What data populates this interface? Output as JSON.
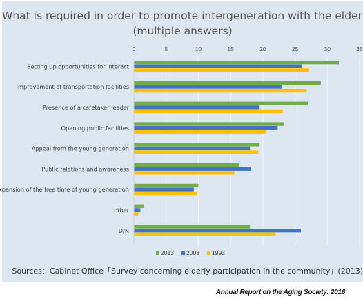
{
  "chart_data": {
    "type": "bar",
    "orientation": "horizontal",
    "title": "What is required in order to promote intergeneration with the elderly ?",
    "subtitle": "(multiple answers)",
    "categories": [
      "Setting up opportunities for interact",
      "Improvement of transportation facilities",
      "Presence of a caretaker leader",
      "Opening public facilities",
      "Appeal from the young generation",
      "Public relations and awareness",
      "Expansion of the free time of young generation",
      "other",
      "D/N"
    ],
    "series": [
      {
        "name": "2013",
        "color": "#70ad47",
        "values": [
          31.8,
          29.0,
          27.0,
          23.3,
          19.5,
          16.3,
          10.0,
          1.6,
          18.0
        ]
      },
      {
        "name": "2003",
        "color": "#4472c4",
        "values": [
          26.0,
          22.9,
          19.5,
          22.3,
          18.0,
          18.2,
          9.3,
          1.0,
          25.9
        ]
      },
      {
        "name": "1993",
        "color": "#ffc000",
        "values": [
          27.2,
          26.8,
          23.1,
          20.5,
          19.3,
          15.6,
          9.8,
          0.7,
          22.0
        ]
      }
    ],
    "xlim": [
      0,
      35
    ],
    "xticks": [
      0,
      5,
      10,
      15,
      20,
      25,
      30,
      35
    ],
    "grid": true,
    "legend_position": "bottom"
  },
  "source": "Sources：Cabinet Office「Survey concerning elderly participation in the community」(2013)",
  "footer": "Annual Report on the Aging Society: 2016"
}
